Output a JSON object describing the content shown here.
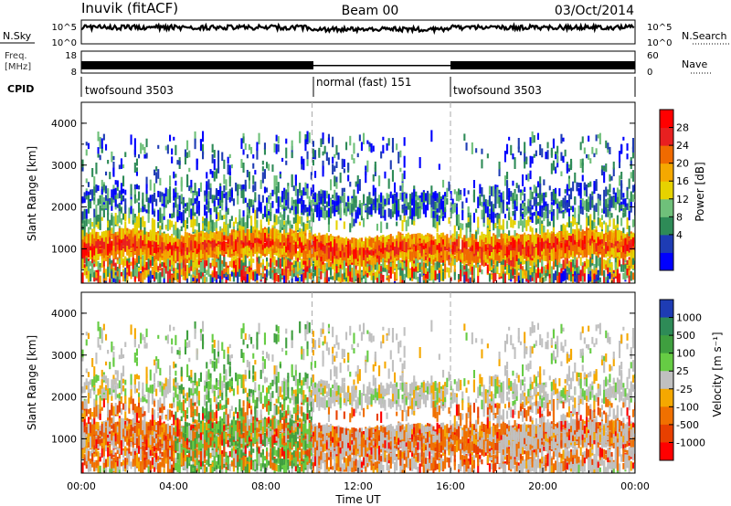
{
  "header": {
    "station": "Inuvik (fitACF)",
    "beam": "Beam 00",
    "date": "03/Oct/2014"
  },
  "noise_panel": {
    "left_label": "N.Sky",
    "left_ticks": [
      "10^5",
      "10^0"
    ],
    "right_label": "N.Search",
    "right_ticks": [
      "10^5",
      "10^0"
    ]
  },
  "freq_panel": {
    "left_label_1": "Freq.",
    "left_label_2": "[MHz]",
    "left_ticks": [
      "18",
      "8"
    ],
    "right_label": "Nave",
    "right_ticks": [
      "60",
      "0"
    ]
  },
  "cpid_panel": {
    "label": "CPID",
    "segments": [
      {
        "name": "twofsound 3503",
        "start_hour": 0,
        "end_hour": 10.0
      },
      {
        "name": "normal (fast) 151",
        "start_hour": 10.0,
        "end_hour": 16.0
      },
      {
        "name": "twofsound 3503",
        "start_hour": 16.0,
        "end_hour": 24
      }
    ]
  },
  "chart_data": [
    {
      "type": "heatmap",
      "title": "",
      "ylabel": "Slant Range [km]",
      "xlabel": "",
      "xlim": [
        0,
        24
      ],
      "ylim": [
        180,
        4500
      ],
      "yticks": [
        "1000",
        "2000",
        "3000",
        "4000"
      ],
      "colorbar": {
        "label": "Power [dB]",
        "ticks": [
          "28",
          "24",
          "20",
          "16",
          "12",
          "8",
          "4"
        ],
        "range": [
          0,
          30
        ],
        "colors": [
          "#0000ff",
          "#1e3cb4",
          "#2e8b57",
          "#6fc07a",
          "#e6d200",
          "#f5a800",
          "#f06a00",
          "#e82020",
          "#ff0000"
        ]
      },
      "main_band_km": {
        "hours": [
          0,
          2,
          4,
          6,
          8,
          10,
          12,
          14,
          16,
          18,
          20,
          22,
          24
        ],
        "center": [
          1000,
          1150,
          1000,
          1100,
          1150,
          1050,
          900,
          1050,
          1000,
          1000,
          1050,
          1150,
          1050
        ]
      }
    },
    {
      "type": "heatmap",
      "title": "",
      "ylabel": "Slant Range [km]",
      "xlabel": "Time UT",
      "xlim": [
        0,
        24
      ],
      "ylim": [
        180,
        4500
      ],
      "yticks": [
        "1000",
        "2000",
        "3000",
        "4000"
      ],
      "xticks": [
        "00:00",
        "04:00",
        "08:00",
        "12:00",
        "16:00",
        "20:00",
        "00:00"
      ],
      "colorbar": {
        "label": "Velocity [m s⁻¹]",
        "ticks": [
          "1000",
          "500",
          "100",
          "25",
          "-25",
          "-100",
          "-500",
          "-1000"
        ],
        "colors": [
          "#1e3cb4",
          "#2e8b57",
          "#3f9f3f",
          "#66cc44",
          "#c0c0c0",
          "#f5a800",
          "#f07000",
          "#e84000",
          "#ff0000"
        ]
      }
    }
  ]
}
